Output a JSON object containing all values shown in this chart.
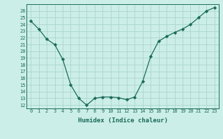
{
  "x": [
    0,
    1,
    2,
    3,
    4,
    5,
    6,
    7,
    8,
    9,
    10,
    11,
    12,
    13,
    14,
    15,
    16,
    17,
    18,
    19,
    20,
    21,
    22,
    23
  ],
  "y": [
    24.5,
    23.3,
    21.8,
    21.0,
    18.8,
    15.0,
    13.0,
    12.0,
    13.0,
    13.2,
    13.2,
    13.1,
    12.8,
    13.2,
    15.5,
    19.2,
    21.5,
    22.2,
    22.8,
    23.3,
    24.0,
    25.0,
    26.0,
    26.5
  ],
  "line_color": "#1a6b5a",
  "marker": "D",
  "marker_size": 2.2,
  "bg_color": "#cceee8",
  "grid_color": "#aad6cc",
  "xlabel": "Humidex (Indice chaleur)",
  "ylabel_ticks": [
    12,
    13,
    14,
    15,
    16,
    17,
    18,
    19,
    20,
    21,
    22,
    23,
    24,
    25,
    26
  ],
  "xlim": [
    -0.5,
    23.5
  ],
  "ylim": [
    11.5,
    27.0
  ],
  "xticks": [
    0,
    1,
    2,
    3,
    4,
    5,
    6,
    7,
    8,
    9,
    10,
    11,
    12,
    13,
    14,
    15,
    16,
    17,
    18,
    19,
    20,
    21,
    22,
    23
  ]
}
